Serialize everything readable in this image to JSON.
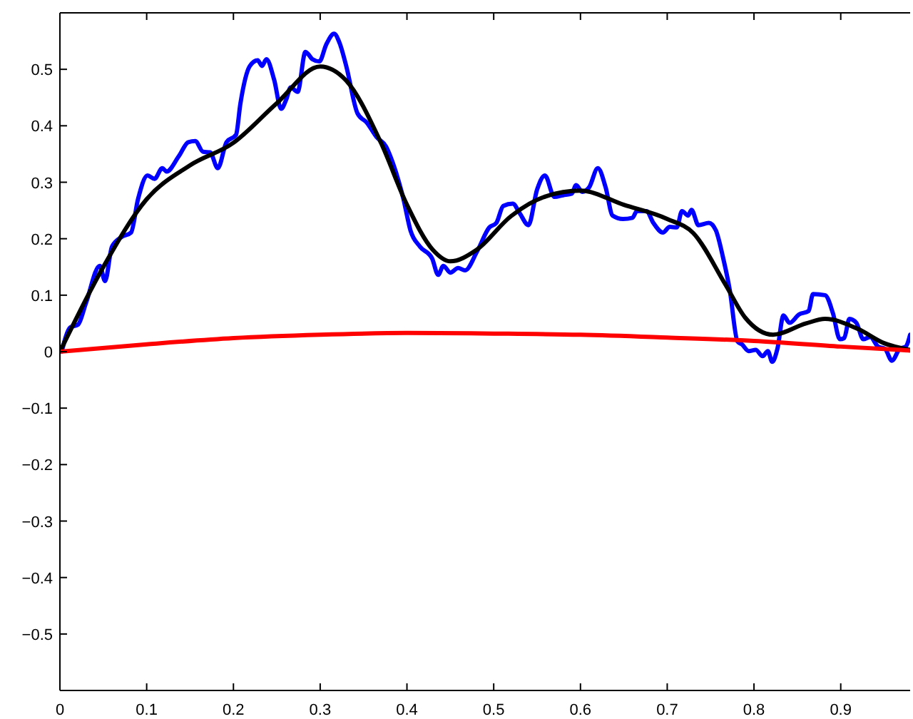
{
  "chart_data": {
    "type": "line",
    "xlim": [
      0,
      0.98
    ],
    "ylim": [
      -0.6,
      0.6
    ],
    "xticks": [
      0,
      0.1,
      0.2,
      0.3,
      0.4,
      0.5,
      0.6,
      0.7,
      0.8,
      0.9
    ],
    "yticks": [
      -0.5,
      -0.4,
      -0.3,
      -0.2,
      -0.1,
      0,
      0.1,
      0.2,
      0.3,
      0.4,
      0.5
    ],
    "grid": false,
    "marker": "none",
    "line_style": "solid",
    "series": [
      {
        "color": "#0000ff",
        "x": [
          0.002,
          0.012,
          0.021,
          0.03,
          0.046,
          0.052,
          0.06,
          0.071,
          0.082,
          0.09,
          0.101,
          0.109,
          0.118,
          0.123,
          0.137,
          0.148,
          0.156,
          0.165,
          0.173,
          0.182,
          0.192,
          0.203,
          0.208,
          0.219,
          0.228,
          0.233,
          0.238,
          0.247,
          0.255,
          0.261,
          0.266,
          0.274,
          0.283,
          0.291,
          0.299,
          0.307,
          0.316,
          0.322,
          0.33,
          0.343,
          0.354,
          0.365,
          0.376,
          0.384,
          0.396,
          0.404,
          0.415,
          0.429,
          0.436,
          0.442,
          0.45,
          0.459,
          0.467,
          0.481,
          0.495,
          0.503,
          0.511,
          0.522,
          0.53,
          0.54,
          0.55,
          0.559,
          0.57,
          0.58,
          0.59,
          0.595,
          0.602,
          0.61,
          0.62,
          0.629,
          0.637,
          0.649,
          0.66,
          0.665,
          0.676,
          0.684,
          0.695,
          0.703,
          0.711,
          0.717,
          0.724,
          0.728,
          0.736,
          0.748,
          0.756,
          0.764,
          0.772,
          0.781,
          0.786,
          0.794,
          0.802,
          0.81,
          0.816,
          0.821,
          0.827,
          0.834,
          0.841,
          0.852,
          0.863,
          0.868,
          0.882,
          0.891,
          0.899,
          0.904,
          0.91,
          0.918,
          0.926,
          0.934,
          0.943,
          0.951,
          0.959,
          0.968,
          0.975,
          0.98
        ],
        "values": [
          0,
          0.043,
          0.048,
          0.086,
          0.152,
          0.125,
          0.186,
          0.203,
          0.211,
          0.27,
          0.312,
          0.306,
          0.325,
          0.319,
          0.346,
          0.371,
          0.373,
          0.354,
          0.353,
          0.325,
          0.371,
          0.384,
          0.439,
          0.506,
          0.516,
          0.506,
          0.518,
          0.481,
          0.43,
          0.447,
          0.468,
          0.46,
          0.531,
          0.518,
          0.514,
          0.544,
          0.563,
          0.548,
          0.506,
          0.422,
          0.405,
          0.38,
          0.363,
          0.333,
          0.27,
          0.215,
          0.186,
          0.165,
          0.136,
          0.152,
          0.14,
          0.148,
          0.144,
          0.178,
          0.22,
          0.228,
          0.258,
          0.262,
          0.245,
          0.224,
          0.287,
          0.312,
          0.274,
          0.277,
          0.28,
          0.295,
          0.283,
          0.291,
          0.325,
          0.291,
          0.241,
          0.235,
          0.237,
          0.249,
          0.249,
          0.228,
          0.211,
          0.221,
          0.22,
          0.249,
          0.241,
          0.251,
          0.224,
          0.228,
          0.215,
          0.169,
          0.11,
          0.018,
          0.013,
          0.001,
          0.003,
          -0.008,
          0.001,
          -0.018,
          0.005,
          0.064,
          0.051,
          0.066,
          0.072,
          0.102,
          0.1,
          0.068,
          0.022,
          0.024,
          0.058,
          0.051,
          0.022,
          0.026,
          0.009,
          0.005,
          -0.016,
          0.005,
          0.009,
          0.03
        ]
      },
      {
        "color": "#000000",
        "x": [
          0,
          0.05,
          0.1,
          0.15,
          0.2,
          0.25,
          0.3,
          0.33,
          0.37,
          0.4,
          0.43,
          0.45,
          0.48,
          0.52,
          0.56,
          0.6,
          0.65,
          0.7,
          0.73,
          0.767,
          0.79,
          0.822,
          0.86,
          0.882,
          0.92,
          0.95,
          0.98
        ],
        "values": [
          0,
          0.15,
          0.27,
          0.33,
          0.37,
          0.44,
          0.505,
          0.48,
          0.37,
          0.26,
          0.18,
          0.16,
          0.18,
          0.24,
          0.275,
          0.285,
          0.26,
          0.235,
          0.21,
          0.119,
          0.06,
          0.03,
          0.05,
          0.058,
          0.04,
          0.015,
          0.003
        ]
      },
      {
        "color": "#ff0000",
        "x": [
          0,
          0.1,
          0.2,
          0.3,
          0.4,
          0.5,
          0.6,
          0.7,
          0.8,
          0.9,
          0.98
        ],
        "values": [
          0,
          0.013,
          0.024,
          0.03,
          0.033,
          0.032,
          0.03,
          0.025,
          0.019,
          0.009,
          0.002
        ]
      }
    ]
  }
}
